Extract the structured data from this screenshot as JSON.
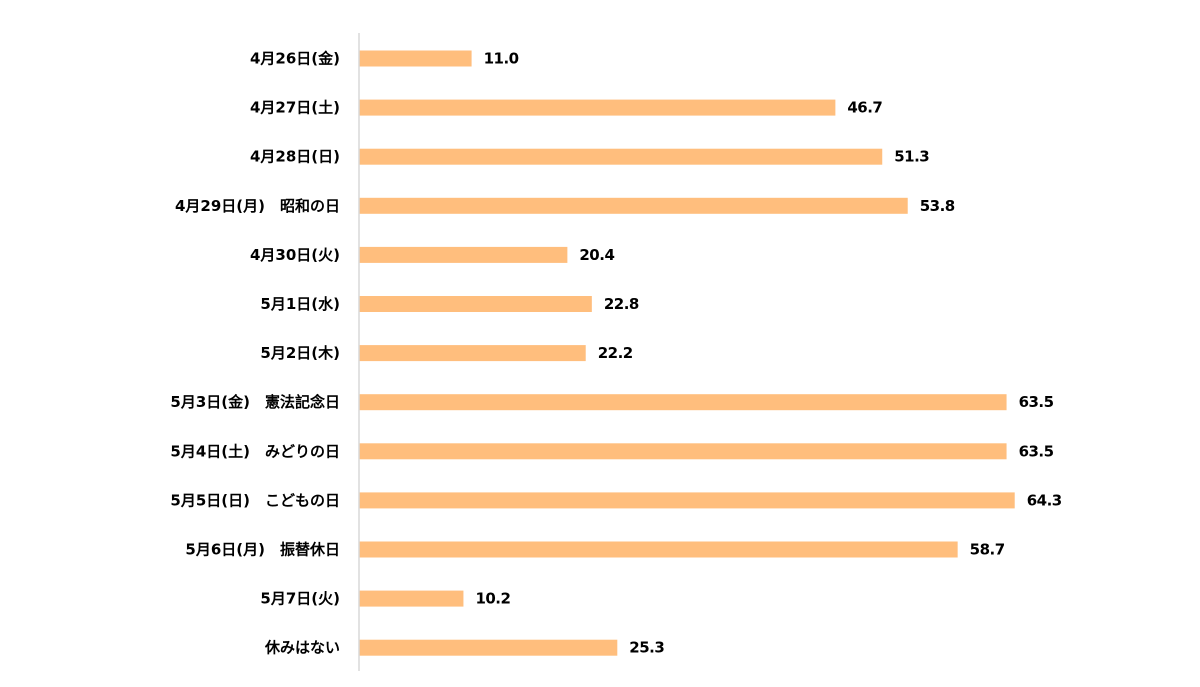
{
  "chart_data": {
    "type": "bar",
    "orientation": "horizontal",
    "title": "",
    "xlabel": "",
    "ylabel": "",
    "xlim": [
      0,
      70
    ],
    "grid": false,
    "legend": "none",
    "bar_color": "#FFBE7D",
    "axis_color": "#D9D9D9",
    "categories": [
      "4月26日(金)",
      "4月27日(土)",
      "4月28日(日)",
      "4月29日(月)　昭和の日",
      "4月30日(火)",
      "5月1日(水)",
      "5月2日(木)",
      "5月3日(金)　憲法記念日",
      "5月4日(土)　みどりの日",
      "5月5日(日)　こどもの日",
      "5月6日(月)　振替休日",
      "5月7日(火)",
      "休みはない"
    ],
    "values": [
      11.0,
      46.7,
      51.3,
      53.8,
      20.4,
      22.8,
      22.2,
      63.5,
      63.5,
      64.3,
      58.7,
      10.2,
      25.3
    ],
    "value_labels": [
      "11.0",
      "46.7",
      "51.3",
      "53.8",
      "20.4",
      "22.8",
      "22.2",
      "63.5",
      "63.5",
      "64.3",
      "58.7",
      "10.2",
      "25.3"
    ]
  }
}
